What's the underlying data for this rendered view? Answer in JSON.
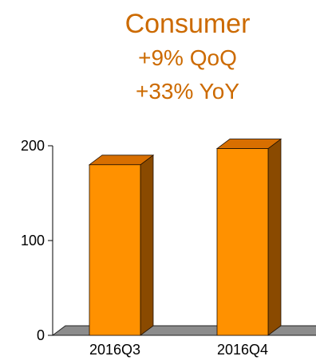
{
  "chart_data": {
    "type": "bar",
    "title": "Consumer",
    "subtitles": [
      "+9%  QoQ",
      "+33%  YoY"
    ],
    "categories": [
      "2016Q3",
      "2016Q4"
    ],
    "values": [
      180,
      197
    ],
    "ylim": [
      0,
      200
    ],
    "y_ticks": [
      0,
      100,
      200
    ],
    "grid": false,
    "legend": "none",
    "colors": {
      "bar_front": "#ff9100",
      "bar_side": "#8a4a00",
      "bar_top": "#d86f00",
      "floor": "#8c8c8c",
      "title": "#cc6a00",
      "axis": "#000000"
    }
  }
}
